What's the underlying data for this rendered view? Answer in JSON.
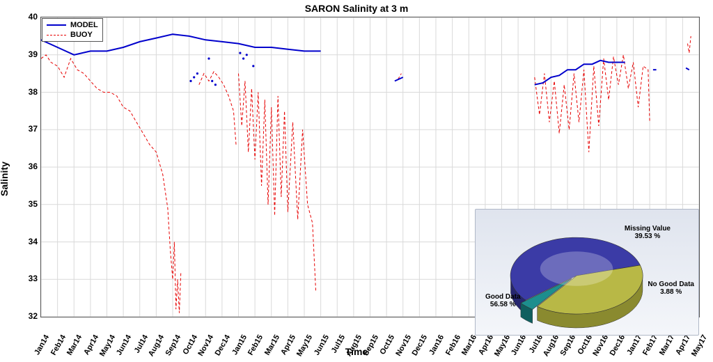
{
  "chart": {
    "type": "line",
    "title": "SARON Salinity at 3 m",
    "title_fontsize": 14,
    "xlabel": "Time",
    "ylabel": "Salinity",
    "label_fontsize": 14,
    "background_color": "#ffffff",
    "grid_color": "#d9d9d9",
    "ylim": [
      32,
      40
    ],
    "ytick_step": 1,
    "yticks": [
      32,
      33,
      34,
      35,
      36,
      37,
      38,
      39,
      40
    ],
    "xticks": [
      "Jan14",
      "Feb14",
      "Mar14",
      "Apr14",
      "May14",
      "Jun14",
      "Jul14",
      "Aug14",
      "Sep14",
      "Oct14",
      "Nov14",
      "Dec14",
      "Jan15",
      "Feb15",
      "Mar15",
      "Apr15",
      "May15",
      "Jun15",
      "Jul15",
      "Aug15",
      "Sep15",
      "Oct15",
      "Nov15",
      "Dec15",
      "Jan16",
      "Feb16",
      "Mar16",
      "Apr16",
      "May16",
      "Jun16",
      "Jul16",
      "Aug16",
      "Sep16",
      "Oct16",
      "Nov16",
      "Dec16",
      "Jan17",
      "Feb17",
      "Mar17",
      "Apr17",
      "May17"
    ],
    "x_tick_rotation_deg": -60,
    "tick_fontsize": 11,
    "legend": {
      "position": "upper-left",
      "items": [
        {
          "label": "MODEL",
          "color": "#0000cc",
          "style": "solid",
          "width": 2
        },
        {
          "label": "BUOY",
          "color": "#e60000",
          "style": "dashed",
          "width": 1
        }
      ],
      "border_color": "#555555",
      "background": "#ffffff"
    },
    "series": {
      "model": {
        "color": "#0000cc",
        "linewidth": 2,
        "linestyle": "solid",
        "segments": [
          {
            "x": [
              0,
              1,
              2,
              3,
              4,
              5,
              6,
              7,
              8,
              9,
              10,
              11,
              12,
              13,
              14,
              15,
              16,
              17
            ],
            "y": [
              39.4,
              39.2,
              39.0,
              39.1,
              39.1,
              39.2,
              39.35,
              39.45,
              39.55,
              39.5,
              39.4,
              39.35,
              39.3,
              39.2,
              39.2,
              39.15,
              39.1,
              39.1
            ]
          },
          {
            "x": [
              21.5,
              22.0
            ],
            "y": [
              38.3,
              38.4
            ]
          },
          {
            "x": [
              30.0,
              30.5,
              31,
              31.5,
              32,
              32.5,
              33,
              33.5,
              34,
              34.5,
              35,
              35.5
            ],
            "y": [
              38.2,
              38.25,
              38.4,
              38.45,
              38.6,
              38.6,
              38.75,
              38.75,
              38.85,
              38.8,
              38.8,
              38.8
            ]
          },
          {
            "x": [
              37.2,
              37.4
            ],
            "y": [
              38.6,
              38.6
            ]
          },
          {
            "x": [
              39.2,
              39.4
            ],
            "y": [
              38.65,
              38.6
            ]
          }
        ],
        "scatter": {
          "x": [
            9.1,
            9.3,
            9.5,
            10.2,
            10.4,
            10.6,
            12.1,
            12.3,
            12.5,
            12.9
          ],
          "y": [
            38.3,
            38.4,
            38.5,
            38.9,
            38.3,
            38.2,
            39.05,
            38.9,
            39.0,
            38.7
          ]
        }
      },
      "buoy": {
        "color": "#e60000",
        "linewidth": 1,
        "linestyle": "dashed",
        "segments": [
          {
            "x": [
              0,
              0.3,
              0.6,
              1,
              1.4,
              1.8,
              2.2,
              2.6,
              3,
              3.4,
              3.8,
              4.2,
              4.6,
              5,
              5.4,
              5.8,
              6.2,
              6.6,
              7,
              7.4,
              7.7,
              7.85,
              8,
              8.1,
              8.2,
              8.3,
              8.4,
              8.5
            ],
            "y": [
              38.9,
              39.0,
              38.8,
              38.7,
              38.4,
              38.9,
              38.6,
              38.5,
              38.3,
              38.1,
              38.0,
              38.0,
              37.9,
              37.6,
              37.5,
              37.2,
              36.9,
              36.6,
              36.4,
              35.8,
              34.9,
              33.8,
              33.0,
              34.0,
              32.2,
              33.0,
              32.1,
              33.2
            ]
          },
          {
            "x": [
              9.6,
              9.9,
              10.2,
              10.5,
              10.8,
              11.1,
              11.4,
              11.7,
              11.85
            ],
            "y": [
              38.2,
              38.5,
              38.3,
              38.55,
              38.4,
              38.2,
              37.9,
              37.5,
              36.6
            ]
          },
          {
            "x": [
              12.0,
              12.2,
              12.4,
              12.6,
              12.8,
              13.0,
              13.2,
              13.4,
              13.6,
              13.8,
              14.0,
              14.2,
              14.4,
              14.6,
              14.8,
              15.0,
              15.3,
              15.6,
              15.9,
              16.2,
              16.5,
              16.7
            ],
            "y": [
              38.5,
              37.1,
              38.3,
              36.4,
              38.1,
              36.2,
              38.0,
              35.5,
              37.8,
              35.0,
              37.6,
              34.7,
              37.9,
              35.2,
              37.5,
              34.8,
              37.2,
              34.6,
              37.0,
              35.0,
              34.5,
              32.7
            ]
          },
          {
            "x": [
              21.7,
              21.9
            ],
            "y": [
              38.35,
              38.5
            ]
          },
          {
            "x": [
              30.0,
              30.3,
              30.6,
              30.9,
              31.2,
              31.5,
              31.8,
              32.1,
              32.4,
              32.7,
              33.0,
              33.3,
              33.6,
              33.9,
              34.2,
              34.5,
              34.8,
              35.1,
              35.4,
              35.7,
              36.0,
              36.3,
              36.6,
              36.9,
              37.0
            ],
            "y": [
              38.4,
              37.4,
              38.5,
              37.2,
              38.3,
              36.9,
              38.2,
              37.0,
              38.5,
              37.2,
              38.6,
              36.4,
              38.7,
              37.1,
              38.9,
              37.8,
              38.95,
              38.2,
              39.0,
              38.1,
              38.8,
              37.6,
              38.7,
              38.6,
              37.2
            ]
          },
          {
            "x": [
              39.3,
              39.4,
              39.5
            ],
            "y": [
              39.3,
              39.05,
              39.5
            ]
          }
        ]
      }
    }
  },
  "pie_inset": {
    "type": "pie-3d",
    "background_gradient": [
      "#dfe4ee",
      "#f4f6fa"
    ],
    "border_color": "#b0b8c7",
    "slices": [
      {
        "label": "Good Data",
        "value": 56.58,
        "percent_text": "56.58 %",
        "color": "#3b3ba6",
        "side_color": "#26266f"
      },
      {
        "label": "Missing Value",
        "value": 39.53,
        "percent_text": "39.53 %",
        "color": "#b8b846",
        "side_color": "#8a8a2f"
      },
      {
        "label": "No Good Data",
        "value": 3.88,
        "percent_text": "3.88 %",
        "color": "#1d8e8e",
        "side_color": "#0f5f5f"
      }
    ],
    "label_fontsize": 10,
    "explode_slice": 2
  }
}
